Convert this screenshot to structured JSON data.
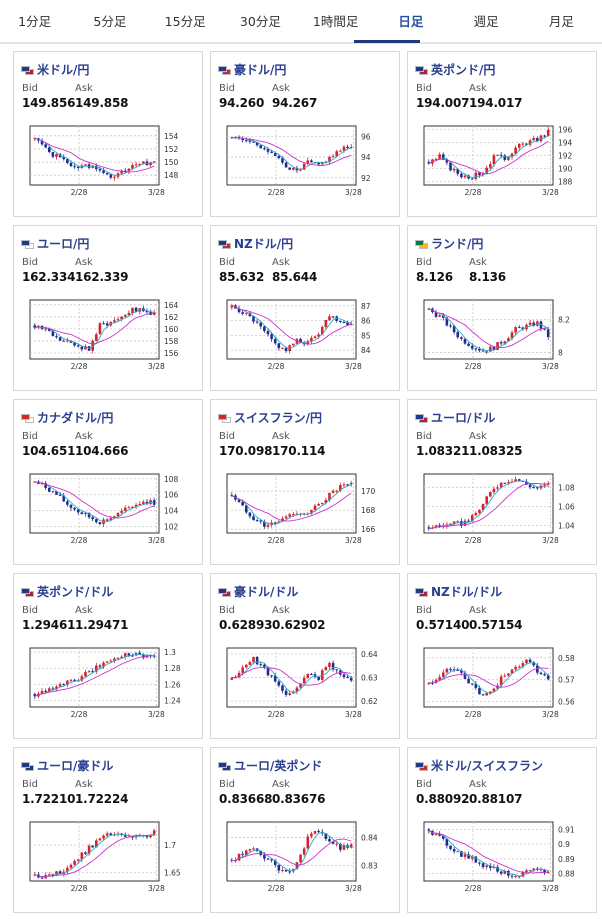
{
  "tabs": [
    "1分足",
    "5分足",
    "15分足",
    "30分足",
    "1時間足",
    "日足",
    "週足",
    "月足"
  ],
  "active_tab": 5,
  "bid_label": "Bid",
  "ask_label": "Ask",
  "cards": [
    {
      "pair": "米ドル/円",
      "bid": "149.856",
      "ask": "149.858",
      "flags": [
        "#1e3a8a",
        "#b22234"
      ],
      "yticks": [
        "154",
        "152",
        "150",
        "148"
      ],
      "ylim": [
        146.5,
        155.5
      ],
      "xticks": [
        "2/28",
        "3/28"
      ],
      "trend": [
        153.6,
        152.0,
        150.8,
        149.9,
        149.2,
        149.5,
        148.6,
        147.6,
        148.4,
        149.2,
        149.7,
        150.3
      ]
    },
    {
      "pair": "豪ドル/円",
      "bid": "94.260",
      "ask": "94.267",
      "flags": [
        "#1e3a8a",
        "#cc2244"
      ],
      "yticks": [
        "96",
        "94",
        "92"
      ],
      "ylim": [
        91.3,
        97.0
      ],
      "xticks": [
        "2/28",
        "3/28"
      ],
      "trend": [
        95.9,
        95.7,
        95.4,
        94.9,
        94.0,
        93.2,
        92.6,
        93.5,
        93.2,
        94.0,
        94.6,
        95.2
      ]
    },
    {
      "pair": "英ポンド/円",
      "bid": "194.007",
      "ask": "194.017",
      "flags": [
        "#1e3a8a",
        "#b22234"
      ],
      "yticks": [
        "196",
        "194",
        "192",
        "190",
        "188"
      ],
      "ylim": [
        187.5,
        196.5
      ],
      "xticks": [
        "2/28",
        "3/28"
      ],
      "trend": [
        191.0,
        191.8,
        190.0,
        189.0,
        188.8,
        189.5,
        191.8,
        191.6,
        193.2,
        194.0,
        194.5,
        195.6
      ]
    },
    {
      "pair": "ユーロ/円",
      "bid": "162.334",
      "ask": "162.339",
      "flags": [
        "#1e3a8a",
        "#ffffff"
      ],
      "yticks": [
        "164",
        "162",
        "160",
        "158",
        "156"
      ],
      "ylim": [
        155.0,
        164.8
      ],
      "xticks": [
        "2/28",
        "3/28"
      ],
      "trend": [
        160.6,
        160.0,
        158.4,
        157.7,
        157.2,
        156.6,
        160.6,
        161.2,
        162.2,
        163.4,
        162.8,
        162.6
      ]
    },
    {
      "pair": "NZドル/円",
      "bid": "85.632",
      "ask": "85.644",
      "flags": [
        "#1e3a8a",
        "#cc2244"
      ],
      "yticks": [
        "87",
        "86",
        "85",
        "84"
      ],
      "ylim": [
        83.4,
        87.4
      ],
      "xticks": [
        "2/28",
        "3/28"
      ],
      "trend": [
        86.9,
        86.6,
        86.0,
        85.2,
        84.4,
        84.0,
        84.6,
        84.5,
        85.2,
        86.4,
        86.0,
        85.8
      ]
    },
    {
      "pair": "ランド/円",
      "bid": "8.126",
      "ask": "8.136",
      "flags": [
        "#007a4d",
        "#ffb612"
      ],
      "yticks": [
        "8.2",
        "8"
      ],
      "ylim": [
        7.96,
        8.32
      ],
      "xticks": [
        "2/28",
        "3/28"
      ],
      "trend": [
        8.26,
        8.22,
        8.15,
        8.08,
        8.04,
        8.01,
        8.03,
        8.08,
        8.14,
        8.16,
        8.18,
        8.1
      ]
    },
    {
      "pair": "カナダドル/円",
      "bid": "104.651",
      "ask": "104.666",
      "flags": [
        "#d52b1e",
        "#ffffff"
      ],
      "yticks": [
        "108",
        "106",
        "104",
        "102"
      ],
      "ylim": [
        101.2,
        108.6
      ],
      "xticks": [
        "2/28",
        "3/28"
      ],
      "trend": [
        107.6,
        107.0,
        106.0,
        104.8,
        103.9,
        103.2,
        102.6,
        103.1,
        103.8,
        104.6,
        105.2,
        105.0
      ]
    },
    {
      "pair": "スイスフラン/円",
      "bid": "170.098",
      "ask": "170.114",
      "flags": [
        "#d52b1e",
        "#ffffff"
      ],
      "yticks": [
        "170",
        "168",
        "166"
      ],
      "ylim": [
        165.6,
        171.8
      ],
      "xticks": [
        "2/28",
        "3/28"
      ],
      "trend": [
        169.6,
        168.3,
        167.2,
        166.4,
        166.6,
        167.3,
        167.8,
        167.5,
        168.6,
        169.6,
        170.4,
        170.6
      ]
    },
    {
      "pair": "ユーロ/ドル",
      "bid": "1.08321",
      "ask": "1.08325",
      "flags": [
        "#1e3a8a",
        "#b22234"
      ],
      "yticks": [
        "1.08",
        "1.06",
        "1.04"
      ],
      "ylim": [
        1.032,
        1.094
      ],
      "xticks": [
        "2/28",
        "3/28"
      ],
      "trend": [
        1.038,
        1.04,
        1.041,
        1.042,
        1.048,
        1.062,
        1.08,
        1.087,
        1.089,
        1.083,
        1.079,
        1.083
      ]
    },
    {
      "pair": "英ポンド/ドル",
      "bid": "1.29461",
      "ask": "1.29471",
      "flags": [
        "#1e3a8a",
        "#b22234"
      ],
      "yticks": [
        "1.3",
        "1.28",
        "1.26",
        "1.24"
      ],
      "ylim": [
        1.232,
        1.305
      ],
      "xticks": [
        "2/28",
        "3/28"
      ],
      "trend": [
        1.248,
        1.254,
        1.259,
        1.262,
        1.266,
        1.275,
        1.283,
        1.29,
        1.296,
        1.299,
        1.296,
        1.294
      ]
    },
    {
      "pair": "豪ドル/ドル",
      "bid": "0.62893",
      "ask": "0.62902",
      "flags": [
        "#1e3a8a",
        "#b22234"
      ],
      "yticks": [
        "0.64",
        "0.63",
        "0.62"
      ],
      "ylim": [
        0.6175,
        0.6425
      ],
      "xticks": [
        "2/28",
        "3/28"
      ],
      "trend": [
        0.629,
        0.634,
        0.638,
        0.634,
        0.628,
        0.622,
        0.626,
        0.631,
        0.63,
        0.636,
        0.631,
        0.629
      ]
    },
    {
      "pair": "NZドル/ドル",
      "bid": "0.57140",
      "ask": "0.57154",
      "flags": [
        "#1e3a8a",
        "#b22234"
      ],
      "yticks": [
        "0.58",
        "0.57",
        "0.56"
      ],
      "ylim": [
        0.5575,
        0.5845
      ],
      "xticks": [
        "2/28",
        "3/28"
      ],
      "trend": [
        0.568,
        0.572,
        0.575,
        0.573,
        0.567,
        0.562,
        0.566,
        0.573,
        0.575,
        0.58,
        0.574,
        0.571
      ]
    },
    {
      "pair": "ユーロ/豪ドル",
      "bid": "1.72210",
      "ask": "1.72224",
      "flags": [
        "#1e3a8a",
        "#1e3a8a"
      ],
      "yticks": [
        "1.7",
        "1.65"
      ],
      "ylim": [
        1.635,
        1.742
      ],
      "xticks": [
        "2/28",
        "3/28"
      ],
      "trend": [
        1.646,
        1.643,
        1.648,
        1.66,
        1.676,
        1.695,
        1.712,
        1.72,
        1.717,
        1.712,
        1.716,
        1.722
      ]
    },
    {
      "pair": "ユーロ/英ポンド",
      "bid": "0.83668",
      "ask": "0.83676",
      "flags": [
        "#1e3a8a",
        "#1e3a8a"
      ],
      "yticks": [
        "0.84",
        "0.83"
      ],
      "ylim": [
        0.8245,
        0.8455
      ],
      "xticks": [
        "2/28",
        "3/28"
      ],
      "trend": [
        0.832,
        0.834,
        0.836,
        0.833,
        0.83,
        0.827,
        0.831,
        0.84,
        0.842,
        0.839,
        0.836,
        0.837
      ]
    },
    {
      "pair": "米ドル/スイスフラン",
      "bid": "0.88092",
      "ask": "0.88107",
      "flags": [
        "#1e3a8a",
        "#d52b1e"
      ],
      "yticks": [
        "0.91",
        "0.9",
        "0.89",
        "0.88"
      ],
      "ylim": [
        0.875,
        0.915
      ],
      "xticks": [
        "2/28",
        "3/28"
      ],
      "trend": [
        0.91,
        0.904,
        0.898,
        0.893,
        0.89,
        0.886,
        0.884,
        0.88,
        0.879,
        0.881,
        0.882,
        0.881
      ]
    }
  ],
  "colors": {
    "up": "#d6232b",
    "down": "#1d2e8f",
    "ma": "#cc33cc",
    "ma_fast": "#2fa7c9",
    "grid": "#c8c8c8",
    "pair": "#2a3f8f",
    "tab_active": "#2450a0"
  }
}
